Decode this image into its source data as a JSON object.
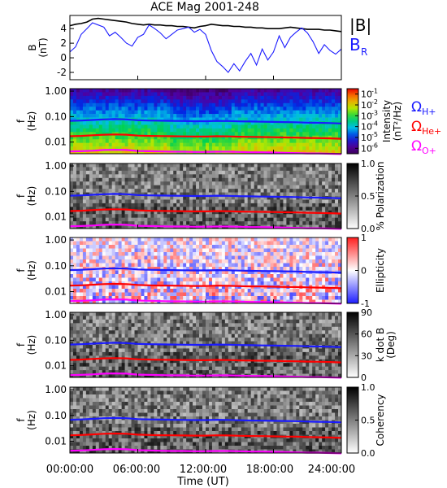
{
  "chart_data": {
    "title": "ACE Mag 2001-248",
    "x_axis": {
      "label": "Time (UT)",
      "ticks": [
        "00:00:00",
        "06:00:00",
        "12:00:00",
        "18:00:00",
        "24:00:00"
      ],
      "range_hours": [
        0,
        24
      ]
    },
    "panels": [
      {
        "type": "line",
        "ylabel_top": "B",
        "ylabel_unit": "(nT)",
        "ylim": [
          -3,
          5.8
        ],
        "yticks": [
          "4",
          "2",
          "0",
          "-2"
        ],
        "yticks_values": [
          4,
          2,
          0,
          -2
        ],
        "legend": [
          {
            "name": "|B|",
            "color": "#000000"
          },
          {
            "name_main": "B",
            "name_sub": "R",
            "color": "#1a1aff"
          }
        ],
        "series": [
          {
            "name": "|B|",
            "color": "#000000",
            "x": [
              0,
              0.5,
              1,
              1.5,
              2,
              2.5,
              3,
              3.5,
              4,
              4.5,
              5,
              5.5,
              6,
              6.5,
              7,
              7.5,
              8,
              8.5,
              9,
              9.5,
              10,
              10.5,
              11,
              11.5,
              12,
              12.5,
              13,
              13.5,
              14,
              14.5,
              15,
              15.5,
              16,
              16.5,
              17,
              17.5,
              18,
              18.5,
              19,
              19.5,
              20,
              20.5,
              21,
              21.5,
              22,
              22.5,
              23,
              23.5,
              24
            ],
            "y": [
              4.4,
              4.6,
              4.7,
              4.9,
              5.3,
              5.4,
              5.3,
              5.2,
              5.1,
              5.0,
              4.9,
              4.7,
              4.6,
              4.5,
              4.6,
              4.5,
              4.5,
              4.4,
              4.4,
              4.3,
              4.3,
              4.2,
              4.1,
              4.3,
              4.4,
              4.6,
              4.5,
              4.4,
              4.4,
              4.3,
              4.3,
              4.2,
              4.2,
              4.1,
              4.1,
              4.0,
              4.0,
              4.0,
              4.1,
              4.2,
              4.1,
              4.0,
              3.9,
              3.9,
              3.9,
              3.8,
              3.8,
              3.7,
              3.6
            ]
          },
          {
            "name": "B_R",
            "color": "#1a1aff",
            "x": [
              0,
              0.5,
              1,
              1.5,
              2,
              2.5,
              3,
              3.5,
              4,
              4.5,
              5,
              5.5,
              6,
              6.5,
              7,
              7.5,
              8,
              8.5,
              9,
              9.5,
              10,
              10.5,
              11,
              11.5,
              12,
              12.5,
              13,
              13.5,
              14,
              14.5,
              15,
              15.5,
              16,
              16.5,
              17,
              17.5,
              18,
              18.5,
              19,
              19.5,
              20,
              20.5,
              21,
              21.5,
              22,
              22.5,
              23,
              23.5,
              24
            ],
            "y": [
              0.8,
              1.5,
              3.2,
              4.0,
              4.8,
              4.5,
              4.2,
              3.0,
              3.5,
              2.8,
              2.0,
              1.6,
              2.8,
              3.2,
              4.5,
              4.0,
              3.4,
              2.6,
              3.2,
              3.8,
              4.0,
              4.2,
              3.5,
              3.9,
              3.2,
              1.0,
              -0.5,
              -1.2,
              -2.0,
              -0.8,
              -1.8,
              -0.5,
              0.6,
              -1.0,
              1.2,
              -0.3,
              0.8,
              3.0,
              1.4,
              2.8,
              3.5,
              4.1,
              3.4,
              2.2,
              0.6,
              1.8,
              1.0,
              0.5,
              1.2
            ]
          }
        ]
      },
      {
        "type": "heatmap",
        "ylabel_top": "f",
        "ylabel_unit": "(Hz)",
        "yticks": [
          "1.00",
          "0.10",
          "0.01"
        ],
        "yticks_values": [
          1.0,
          0.1,
          0.01
        ],
        "ylim_log": [
          0.0035,
          1.25
        ],
        "colorbar": {
          "scheme": "rainbow",
          "label": "Intensity",
          "unit": "(nT²/Hz)",
          "ticks": [
            {
              "base": "10",
              "exp": "-1",
              "value": 0.1
            },
            {
              "base": "10",
              "exp": "-2",
              "value": 0.01
            },
            {
              "base": "10",
              "exp": "-3",
              "value": 0.001
            },
            {
              "base": "10",
              "exp": "-4",
              "value": 0.0001
            },
            {
              "base": "10",
              "exp": "-5",
              "value": 1e-05
            },
            {
              "base": "10",
              "exp": "-6",
              "value": 1e-06
            }
          ]
        },
        "legend": [
          {
            "main": "Ω",
            "sub": "H+",
            "color": "#1a1aff"
          },
          {
            "main": "Ω",
            "sub": "He+",
            "color": "#ff0000"
          },
          {
            "main": "Ω",
            "sub": "O+",
            "color": "#ff00ff"
          }
        ]
      },
      {
        "type": "heatmap",
        "ylabel_top": "f",
        "ylabel_unit": "(Hz)",
        "yticks": [
          "1.00",
          "0.10",
          "0.01"
        ],
        "yticks_values": [
          1.0,
          0.1,
          0.01
        ],
        "ylim_log": [
          0.0035,
          1.25
        ],
        "colorbar": {
          "scheme": "gray",
          "label": "% Polarization",
          "unit": "",
          "ticks": [
            {
              "text": "1.0",
              "value": 1.0
            },
            {
              "text": "0.5",
              "value": 0.5
            },
            {
              "text": "0.0",
              "value": 0.0
            }
          ]
        }
      },
      {
        "type": "heatmap",
        "ylabel_top": "f",
        "ylabel_unit": "(Hz)",
        "yticks": [
          "1.00",
          "0.10",
          "0.01"
        ],
        "yticks_values": [
          1.0,
          0.1,
          0.01
        ],
        "ylim_log": [
          0.0035,
          1.25
        ],
        "colorbar": {
          "scheme": "bwr",
          "label": "Ellipticity",
          "unit": "",
          "ticks": [
            {
              "text": "1",
              "value": 1
            },
            {
              "text": "0",
              "value": 0
            },
            {
              "text": "-1",
              "value": -1
            }
          ]
        }
      },
      {
        "type": "heatmap",
        "ylabel_top": "f",
        "ylabel_unit": "(Hz)",
        "yticks": [
          "1.00",
          "0.10",
          "0.01"
        ],
        "yticks_values": [
          1.0,
          0.1,
          0.01
        ],
        "ylim_log": [
          0.0035,
          1.25
        ],
        "colorbar": {
          "scheme": "gray",
          "label": "k dot B",
          "unit": "(Deg)",
          "ticks": [
            {
              "text": "90",
              "value": 90
            },
            {
              "text": "60",
              "value": 60
            },
            {
              "text": "30",
              "value": 30
            },
            {
              "text": "0",
              "value": 0
            }
          ]
        }
      },
      {
        "type": "heatmap",
        "ylabel_top": "f",
        "ylabel_unit": "(Hz)",
        "yticks": [
          "1.00",
          "0.10",
          "0.01"
        ],
        "yticks_values": [
          1.0,
          0.1,
          0.01
        ],
        "ylim_log": [
          0.0035,
          1.25
        ],
        "colorbar": {
          "scheme": "gray",
          "label": "Coherency",
          "unit": "",
          "ticks": [
            {
              "text": "1.0",
              "value": 1.0
            },
            {
              "text": "0.5",
              "value": 0.5
            },
            {
              "text": "0.0",
              "value": 0.0
            }
          ]
        }
      }
    ],
    "gyrofrequency_lines": {
      "x": [
        0,
        1,
        2,
        3,
        4,
        5,
        6,
        7,
        8,
        9,
        10,
        11,
        12,
        13,
        14,
        15,
        16,
        17,
        18,
        19,
        20,
        21,
        22,
        23,
        24
      ],
      "series": [
        {
          "name": "ΩH+",
          "color": "#1a1aff",
          "y": [
            0.068,
            0.07,
            0.074,
            0.078,
            0.08,
            0.078,
            0.072,
            0.07,
            0.069,
            0.068,
            0.067,
            0.066,
            0.066,
            0.068,
            0.067,
            0.065,
            0.064,
            0.063,
            0.062,
            0.061,
            0.06,
            0.058,
            0.057,
            0.056,
            0.054
          ]
        },
        {
          "name": "ΩHe+",
          "color": "#ff0000",
          "y": [
            0.017,
            0.0175,
            0.0185,
            0.0195,
            0.02,
            0.0195,
            0.018,
            0.0175,
            0.0172,
            0.017,
            0.0168,
            0.0165,
            0.0165,
            0.017,
            0.0168,
            0.0163,
            0.016,
            0.0158,
            0.0155,
            0.0152,
            0.015,
            0.0146,
            0.0143,
            0.014,
            0.0135
          ]
        },
        {
          "name": "ΩO+",
          "color": "#ff00ff",
          "y": [
            0.0043,
            0.0044,
            0.0046,
            0.0049,
            0.005,
            0.0049,
            0.0045,
            0.0044,
            0.0043,
            0.0042,
            0.0042,
            0.0041,
            0.0041,
            0.0042,
            0.0042,
            0.0041,
            0.004,
            0.004,
            0.0039,
            0.0038,
            0.0037,
            0.0036,
            0.0036,
            0.0035,
            0.0034
          ]
        }
      ]
    }
  }
}
